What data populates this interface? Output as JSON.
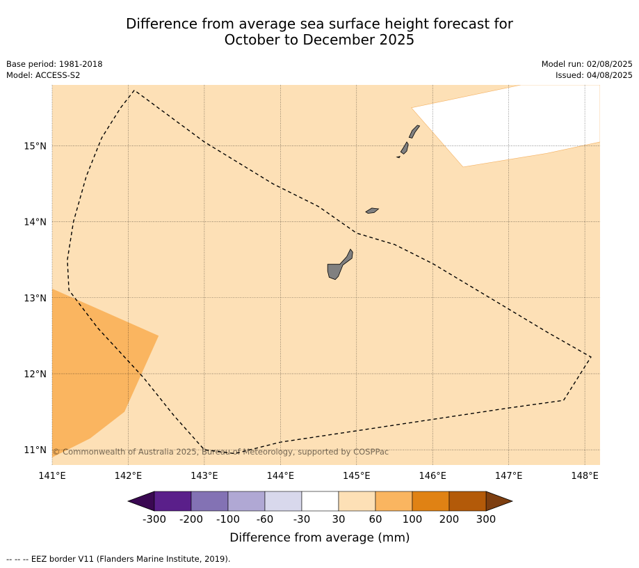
{
  "title": {
    "line1": "Difference from average sea surface height forecast for",
    "line2": "October to December 2025"
  },
  "meta_left": {
    "base_period": "Base period: 1981-2018",
    "model": "Model: ACCESS-S2"
  },
  "meta_right": {
    "model_run": "Model run: 02/08/2025",
    "issued": "Issued: 04/08/2025"
  },
  "map": {
    "lon_range": [
      141.0,
      148.2
    ],
    "lat_range": [
      10.8,
      15.8
    ],
    "lon_ticks": [
      {
        "value": 141,
        "label": "141°E"
      },
      {
        "value": 142,
        "label": "142°E"
      },
      {
        "value": 143,
        "label": "143°E"
      },
      {
        "value": 144,
        "label": "144°E"
      },
      {
        "value": 145,
        "label": "145°E"
      },
      {
        "value": 146,
        "label": "146°E"
      },
      {
        "value": 147,
        "label": "147°E"
      },
      {
        "value": 148,
        "label": "148°E"
      }
    ],
    "lat_ticks": [
      {
        "value": 15,
        "label": "15°N"
      },
      {
        "value": 14,
        "label": "14°N"
      },
      {
        "value": 13,
        "label": "13°N"
      },
      {
        "value": 12,
        "label": "12°N"
      },
      {
        "value": 11,
        "label": "11°N"
      }
    ],
    "gridlines": true,
    "background_category": "30 to 60",
    "regions": [
      {
        "name": "region-60-100",
        "category": "60 to 100",
        "color": "#fab560",
        "polygon": [
          [
            141.0,
            13.12
          ],
          [
            142.4,
            12.5
          ],
          [
            141.95,
            11.5
          ],
          [
            141.5,
            11.15
          ],
          [
            141.0,
            10.9
          ]
        ]
      },
      {
        "name": "region-neutral",
        "category": "-30 to 30",
        "color": "#ffffff",
        "polygon": [
          [
            145.72,
            15.5
          ],
          [
            146.4,
            14.72
          ],
          [
            147.5,
            14.9
          ],
          [
            148.2,
            15.05
          ],
          [
            148.2,
            15.8
          ],
          [
            147.16,
            15.8
          ]
        ]
      }
    ],
    "islands": [
      {
        "name": "guam",
        "polygon": [
          [
            144.62,
            13.44
          ],
          [
            144.78,
            13.44
          ],
          [
            144.87,
            13.54
          ],
          [
            144.92,
            13.64
          ],
          [
            144.95,
            13.6
          ],
          [
            144.94,
            13.52
          ],
          [
            144.82,
            13.43
          ],
          [
            144.76,
            13.28
          ],
          [
            144.72,
            13.24
          ],
          [
            144.64,
            13.27
          ],
          [
            144.62,
            13.35
          ]
        ]
      },
      {
        "name": "rota",
        "polygon": [
          [
            145.12,
            14.13
          ],
          [
            145.2,
            14.18
          ],
          [
            145.29,
            14.17
          ],
          [
            145.23,
            14.12
          ],
          [
            145.15,
            14.11
          ]
        ]
      },
      {
        "name": "tinian",
        "polygon": [
          [
            145.58,
            14.92
          ],
          [
            145.62,
            14.98
          ],
          [
            145.66,
            15.05
          ],
          [
            145.68,
            15.02
          ],
          [
            145.66,
            14.93
          ],
          [
            145.62,
            14.89
          ]
        ]
      },
      {
        "name": "saipan",
        "polygon": [
          [
            145.69,
            15.11
          ],
          [
            145.73,
            15.2
          ],
          [
            145.8,
            15.27
          ],
          [
            145.83,
            15.26
          ],
          [
            145.77,
            15.18
          ],
          [
            145.73,
            15.1
          ]
        ]
      },
      {
        "name": "aguijan",
        "polygon": [
          [
            145.53,
            14.85
          ],
          [
            145.57,
            14.86
          ],
          [
            145.56,
            14.84
          ]
        ]
      }
    ],
    "eez_border": [
      [
        142.08,
        15.73
      ],
      [
        141.9,
        15.5
      ],
      [
        141.65,
        15.1
      ],
      [
        141.45,
        14.6
      ],
      [
        141.28,
        14.0
      ],
      [
        141.2,
        13.5
      ],
      [
        141.22,
        13.1
      ],
      [
        141.6,
        12.6
      ],
      [
        142.2,
        11.95
      ],
      [
        142.6,
        11.45
      ],
      [
        143.0,
        11.0
      ],
      [
        143.4,
        10.95
      ],
      [
        144.0,
        11.1
      ],
      [
        145.0,
        11.25
      ],
      [
        146.0,
        11.4
      ],
      [
        147.0,
        11.55
      ],
      [
        147.72,
        11.65
      ],
      [
        148.08,
        12.22
      ],
      [
        147.5,
        12.55
      ],
      [
        147.0,
        12.85
      ],
      [
        146.0,
        13.45
      ],
      [
        145.5,
        13.7
      ],
      [
        145.0,
        13.85
      ],
      [
        144.5,
        14.2
      ],
      [
        143.9,
        14.5
      ],
      [
        143.0,
        15.05
      ],
      [
        142.08,
        15.73
      ]
    ],
    "copyright": "© Commonwealth of Australia 2025, Bureau of Meteorology, supported by COSPPac"
  },
  "colorbar": {
    "label": "Difference from average (mm)",
    "low_extend_color": "#3a0852",
    "high_extend_color": "#7d3e10",
    "bins": [
      {
        "range": "-300 to -200",
        "color": "#5a1f8a"
      },
      {
        "range": "-200 to -100",
        "color": "#8372b4"
      },
      {
        "range": "-100 to -60",
        "color": "#b0a8d4"
      },
      {
        "range": "-60 to -30",
        "color": "#d8d8ec"
      },
      {
        "range": "-30 to 30",
        "color": "#ffffff"
      },
      {
        "range": "30 to 60",
        "color": "#fde0b6"
      },
      {
        "range": "60 to 100",
        "color": "#fab560"
      },
      {
        "range": "100 to 200",
        "color": "#e08214"
      },
      {
        "range": "200 to 300",
        "color": "#b35a09"
      }
    ],
    "tick_labels": [
      "-300",
      "-200",
      "-100",
      "-60",
      "-30",
      "30",
      "60",
      "100",
      "200",
      "300"
    ]
  },
  "footer": {
    "eez_legend": "--  --  -- EEZ border V11 (Flanders Marine Institute, 2019)."
  }
}
